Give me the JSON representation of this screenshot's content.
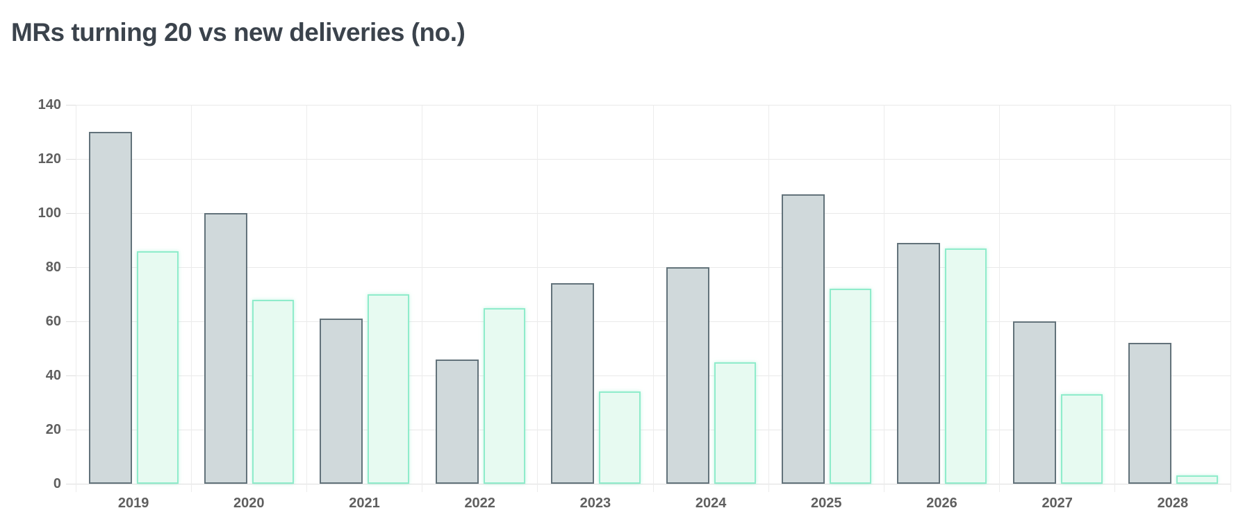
{
  "title": "MRs turning 20 vs new deliveries (no.)",
  "chart_data": {
    "type": "bar",
    "title": "MRs turning 20 vs new deliveries (no.)",
    "categories": [
      "2019",
      "2020",
      "2021",
      "2022",
      "2023",
      "2024",
      "2025",
      "2026",
      "2027",
      "2028"
    ],
    "series": [
      {
        "name": "MRs turning 20",
        "fill": "#d0d9db",
        "border": "#62727a",
        "values": [
          130,
          100,
          61,
          46,
          74,
          80,
          107,
          89,
          60,
          52
        ]
      },
      {
        "name": "New deliveries",
        "fill": "#e7faf1",
        "border": "#8feccb",
        "values": [
          86,
          68,
          70,
          65,
          34,
          45,
          72,
          87,
          33,
          3
        ]
      }
    ],
    "xlabel": "",
    "ylabel": "",
    "ylim": [
      0,
      140
    ],
    "yticks": [
      0,
      20,
      40,
      60,
      80,
      100,
      120,
      140
    ],
    "grid": true,
    "legend_position": "none"
  },
  "colors": {
    "title_text": "#3b434c",
    "axis_label_text": "#5f5f5f",
    "gridline": "#e9e9e9",
    "background": "#ffffff"
  }
}
